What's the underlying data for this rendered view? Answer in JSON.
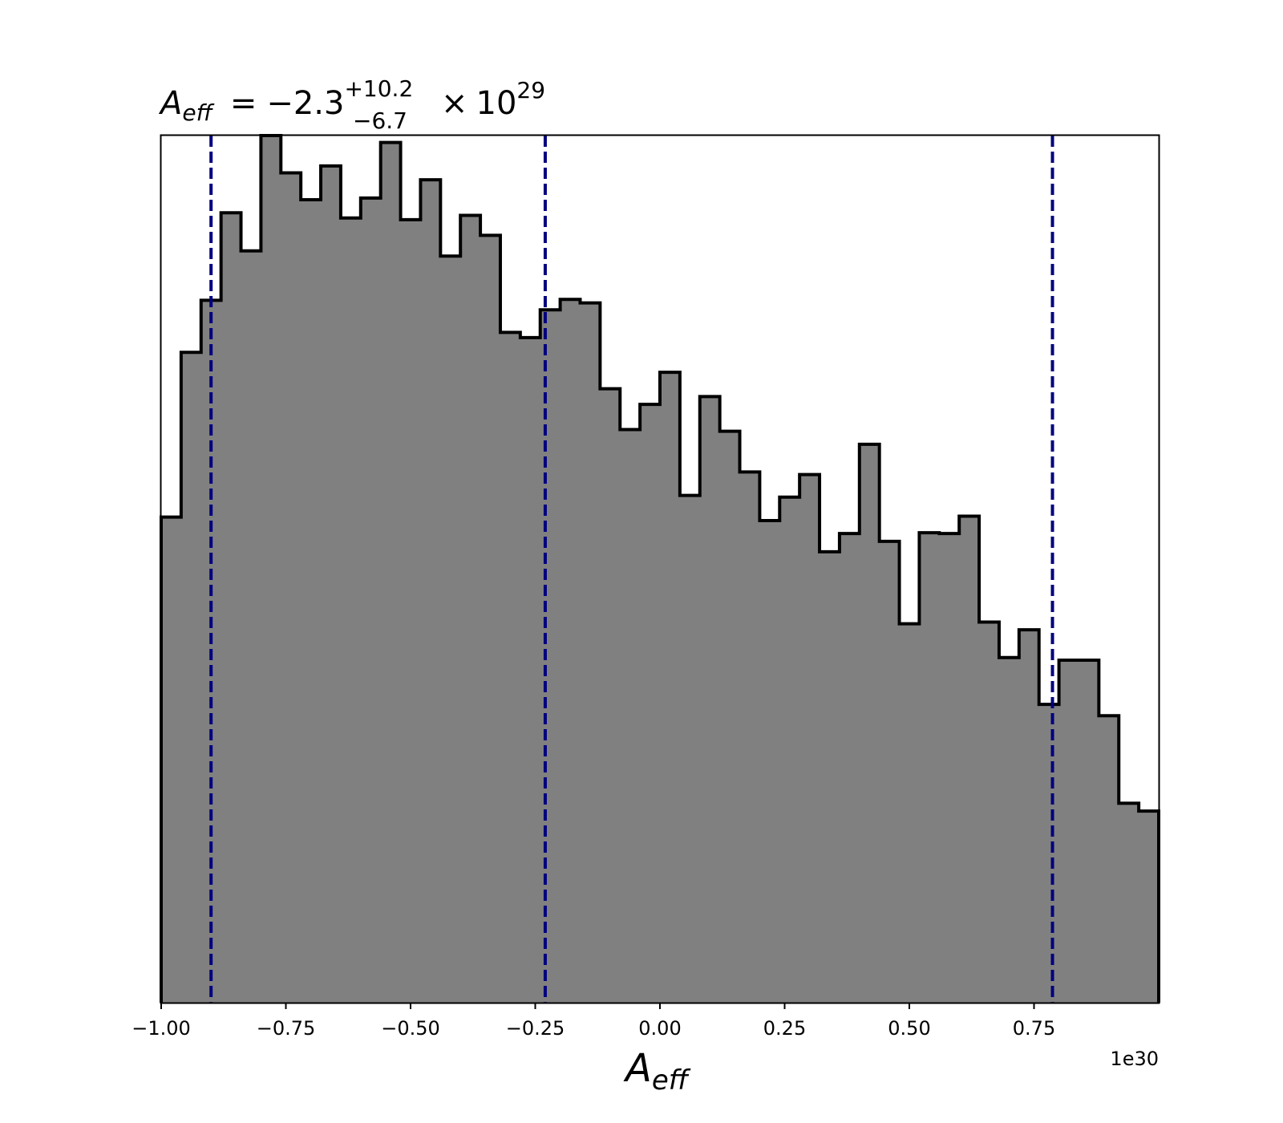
{
  "chart_data": {
    "type": "histogram",
    "title": {
      "symbol": "A",
      "subscript": "eff",
      "equals": "=",
      "value": "−2.3",
      "upper": "+10.2",
      "lower": "−6.7",
      "times": "×",
      "base": "10",
      "exponent": "29"
    },
    "xlabel": {
      "symbol": "A",
      "subscript": "eff"
    },
    "offset_label": "1e30",
    "xlim": [
      -1.0,
      1.0
    ],
    "ylim": [
      0,
      1
    ],
    "x_ticks": [
      -1.0,
      -0.75,
      -0.5,
      -0.25,
      0.0,
      0.25,
      0.5,
      0.75
    ],
    "x_tick_labels": [
      "−1.00",
      "−0.75",
      "−0.50",
      "−0.25",
      "0.00",
      "0.25",
      "0.50",
      "0.75"
    ],
    "bin_edges": [
      -1.0,
      -0.96,
      -0.92,
      -0.88,
      -0.84,
      -0.8,
      -0.76,
      -0.72,
      -0.68,
      -0.64,
      -0.6,
      -0.56,
      -0.52,
      -0.48,
      -0.44,
      -0.4,
      -0.36,
      -0.32,
      -0.28,
      -0.24,
      -0.2,
      -0.16,
      -0.12,
      -0.08,
      -0.04,
      0.0,
      0.04,
      0.08,
      0.12,
      0.16,
      0.2,
      0.24,
      0.28,
      0.32,
      0.36,
      0.4,
      0.44,
      0.48,
      0.52,
      0.56,
      0.6,
      0.64,
      0.68,
      0.72,
      0.76,
      0.8,
      0.84,
      0.88,
      0.92,
      0.96,
      1.0
    ],
    "counts": [
      0.56,
      0.75,
      0.81,
      0.911,
      0.867,
      1.0,
      0.957,
      0.926,
      0.965,
      0.905,
      0.928,
      0.992,
      0.903,
      0.949,
      0.861,
      0.908,
      0.885,
      0.773,
      0.767,
      0.799,
      0.811,
      0.807,
      0.708,
      0.661,
      0.69,
      0.727,
      0.585,
      0.699,
      0.659,
      0.612,
      0.556,
      0.583,
      0.609,
      0.52,
      0.541,
      0.644,
      0.532,
      0.437,
      0.542,
      0.541,
      0.561,
      0.439,
      0.398,
      0.43,
      0.344,
      0.395,
      0.395,
      0.331,
      0.23,
      0.221
    ],
    "fill_color": "#808080",
    "edge_color": "#000000",
    "quantile_lines": [
      -0.9,
      -0.23,
      0.787
    ],
    "quantile_line_color": "#00007f",
    "quantile_line_style": "dashed",
    "y_ticks_visible": false,
    "grid": false
  }
}
